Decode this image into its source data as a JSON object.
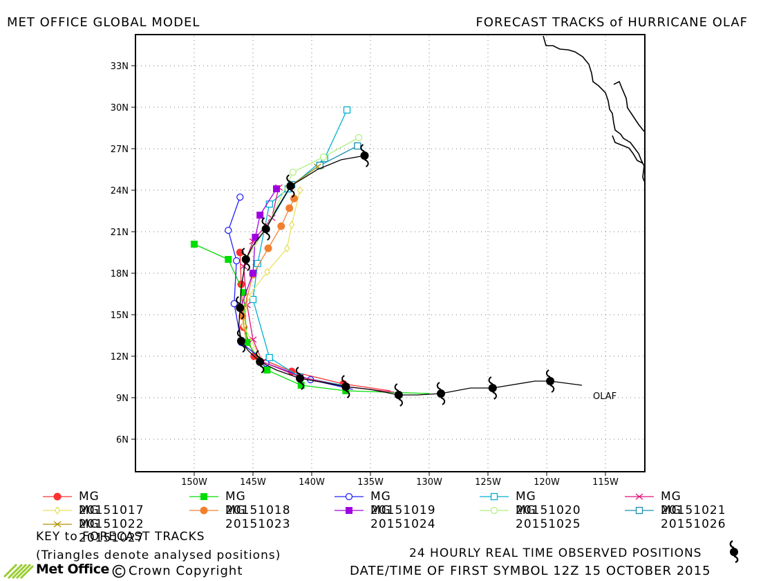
{
  "header": {
    "model_title": "MET OFFICE GLOBAL MODEL",
    "forecast_title": "FORECAST TRACKS of HURRICANE OLAF"
  },
  "map": {
    "storm_label": "OLAF",
    "lon_labels": [
      "150W",
      "145W",
      "140W",
      "135W",
      "130W",
      "125W",
      "120W",
      "115W"
    ],
    "lat_labels": [
      "6N",
      "9N",
      "12N",
      "15N",
      "18N",
      "21N",
      "24N",
      "27N",
      "30N",
      "33N"
    ]
  },
  "chart_data": {
    "type": "map-tracks",
    "lon_range": [
      -155,
      -112
    ],
    "lat_range": [
      4,
      35.5
    ],
    "grid": true,
    "observed_track": [
      [
        -117,
        9.9
      ],
      [
        -119.7,
        10.2
      ],
      [
        -121,
        10.2
      ],
      [
        -124.6,
        9.7
      ],
      [
        -126.5,
        9.7
      ],
      [
        -129,
        9.3
      ],
      [
        -131,
        9.2
      ],
      [
        -132.6,
        9.2
      ],
      [
        -135,
        9.6
      ],
      [
        -137.1,
        9.8
      ],
      [
        -139,
        10.1
      ],
      [
        -141,
        10.4
      ],
      [
        -143,
        11.0
      ],
      [
        -144.4,
        11.6
      ],
      [
        -145.4,
        12.4
      ],
      [
        -146.0,
        13.1
      ],
      [
        -146.2,
        14.2
      ],
      [
        -146.1,
        15.5
      ],
      [
        -146,
        17
      ],
      [
        -145.6,
        19.0
      ],
      [
        -145,
        20
      ],
      [
        -143.9,
        21.2
      ],
      [
        -143,
        22.6
      ],
      [
        -141.8,
        24.3
      ],
      [
        -139.5,
        25.5
      ],
      [
        -137.5,
        26.2
      ],
      [
        -135.5,
        26.5
      ]
    ],
    "observed_symbols": [
      [
        -119.7,
        10.2
      ],
      [
        -124.6,
        9.7
      ],
      [
        -129,
        9.3
      ],
      [
        -132.6,
        9.2
      ],
      [
        -137.1,
        9.8
      ],
      [
        -141,
        10.4
      ],
      [
        -144.4,
        11.6
      ],
      [
        -146.0,
        13.1
      ],
      [
        -146.1,
        15.5
      ],
      [
        -145.6,
        19.0
      ],
      [
        -143.9,
        21.2
      ],
      [
        -141.8,
        24.3
      ],
      [
        -135.5,
        26.5
      ]
    ],
    "series": [
      {
        "name": "MG 20151017",
        "color": "#ff3030",
        "marker": "circle-filled",
        "points": [
          [
            -133.3,
            9.5
          ],
          [
            -137.3,
            10.0
          ],
          [
            -141.7,
            10.9
          ],
          [
            -144.9,
            12.0
          ],
          [
            -145.8,
            14.1
          ],
          [
            -146.0,
            17.2
          ],
          [
            -146.1,
            19.5
          ]
        ]
      },
      {
        "name": "MG 20151018",
        "color": "#00dd00",
        "marker": "square-filled",
        "points": [
          [
            -130,
            9.3
          ],
          [
            -137.1,
            9.5
          ],
          [
            -140.9,
            9.9
          ],
          [
            -143.8,
            11.0
          ],
          [
            -145.5,
            13.0
          ],
          [
            -145.8,
            16.6
          ],
          [
            -147.1,
            19.0
          ],
          [
            -150.0,
            20.1
          ]
        ]
      },
      {
        "name": "MG 20151019",
        "color": "#2020ff",
        "marker": "circle-open",
        "points": [
          [
            -136.5,
            9.6
          ],
          [
            -140.1,
            10.3
          ],
          [
            -143.9,
            11.5
          ],
          [
            -146.0,
            13.0
          ],
          [
            -146.6,
            15.8
          ],
          [
            -146.4,
            18.9
          ],
          [
            -147.1,
            21.1
          ],
          [
            -146.1,
            23.5
          ]
        ]
      },
      {
        "name": "MG 20151020",
        "color": "#00b0d0",
        "marker": "square-open",
        "points": [
          [
            -137.3,
            9.9
          ],
          [
            -141.0,
            10.5
          ],
          [
            -143.6,
            11.9
          ],
          [
            -145.0,
            16.1
          ],
          [
            -144.6,
            18.7
          ],
          [
            -143.6,
            23.0
          ],
          [
            -142.0,
            24.1
          ],
          [
            -138.9,
            26.3
          ],
          [
            -137.0,
            29.8
          ]
        ]
      },
      {
        "name": "MG 20151021",
        "color": "#e0107a",
        "marker": "cross",
        "points": [
          [
            -133,
            9.4
          ],
          [
            -137.1,
            9.8
          ],
          [
            -141.0,
            10.5
          ],
          [
            -144.2,
            11.6
          ],
          [
            -145.0,
            13.2
          ],
          [
            -145.5,
            15.7
          ],
          [
            -145.8,
            18.5
          ],
          [
            -145.0,
            20.3
          ],
          [
            -143.4,
            22.0
          ],
          [
            -142.8,
            24.2
          ]
        ]
      },
      {
        "name": "MG 20151022",
        "color": "#e8e060",
        "marker": "diamond-open",
        "points": [
          [
            -144.2,
            11.6
          ],
          [
            -145.8,
            14.2
          ],
          [
            -145.4,
            16.3
          ],
          [
            -143.8,
            18.1
          ],
          [
            -142.1,
            19.8
          ],
          [
            -141.7,
            21.5
          ],
          [
            -141,
            24
          ]
        ]
      },
      {
        "name": "MG 20151023",
        "color": "#f08030",
        "marker": "circle-filled",
        "points": [
          [
            -145.6,
            13.2
          ],
          [
            -145.9,
            14.9
          ],
          [
            -145.0,
            17.9
          ],
          [
            -143.7,
            19.8
          ],
          [
            -142.6,
            21.4
          ],
          [
            -141.9,
            22.7
          ],
          [
            -141.5,
            23.4
          ]
        ]
      },
      {
        "name": "MG 20151024",
        "color": "#a000e0",
        "marker": "square-filled",
        "points": [
          [
            -146.1,
            15.4
          ],
          [
            -145.0,
            18.0
          ],
          [
            -144.8,
            20.6
          ],
          [
            -144.4,
            22.2
          ],
          [
            -143.0,
            24.1
          ]
        ]
      },
      {
        "name": "MG 20151025",
        "color": "#b0f080",
        "marker": "circle-open",
        "points": [
          [
            -145.6,
            19.0
          ],
          [
            -143.9,
            21.2
          ],
          [
            -141.6,
            25.3
          ],
          [
            -139,
            26.4
          ],
          [
            -136.0,
            27.8
          ]
        ]
      },
      {
        "name": "MG 20151026",
        "color": "#1890b0",
        "marker": "square-open",
        "points": [
          [
            -143.9,
            21.2
          ],
          [
            -141.7,
            24.4
          ],
          [
            -139.3,
            25.8
          ],
          [
            -136.1,
            27.2
          ]
        ]
      },
      {
        "name": "MG 20151027",
        "color": "#b09000",
        "marker": "cross-x",
        "points": [
          [
            -141.8,
            24.3
          ],
          [
            -139.5,
            25.7
          ]
        ]
      }
    ]
  },
  "legend": {
    "items": [
      "MG 20151017",
      "MG 20151018",
      "MG 20151019",
      "MG 20151020",
      "MG 20151021",
      "MG 20151022",
      "MG 20151023",
      "MG 20151024",
      "MG 20151025",
      "MG 20151026",
      "MG 20151027"
    ]
  },
  "footer": {
    "key_title": "KEY to FORECAST TRACKS",
    "key_note": "(Triangles denote analysed positions)",
    "observed_note": "24 HOURLY REAL TIME OBSERVED POSITIONS",
    "datetime_note": "DATE/TIME OF FIRST SYMBOL 12Z 15 OCTOBER 2015",
    "brand": "Met Office",
    "copyright": "Crown Copyright"
  }
}
